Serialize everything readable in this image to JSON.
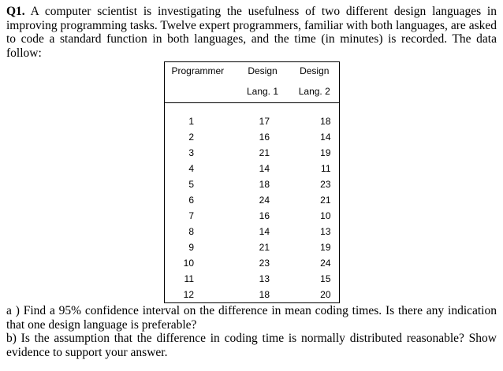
{
  "question": {
    "label": "Q1.",
    "intro": " A computer scientist is investigating the usefulness of two different design languages in improving programming tasks. Twelve expert programmers, familiar with both languages, are asked to code a standard function in both languages, and the time (in minutes) is recorded. The data follow:",
    "part_a": "a ) Find a 95% confidence interval on the difference in mean coding times. Is there any indication that one design language is preferable?",
    "part_b": "b) Is the assumption that the difference in coding time is normally distributed reasonable? Show evidence to support your answer."
  },
  "table": {
    "header": {
      "col1": "Programmer",
      "design1": "Design",
      "design2": "Design",
      "lang1": "Lang. 1",
      "lang2": "Lang. 2"
    },
    "rows": [
      {
        "programmer": "1",
        "lang1": "17",
        "lang2": "18"
      },
      {
        "programmer": "2",
        "lang1": "16",
        "lang2": "14"
      },
      {
        "programmer": "3",
        "lang1": "21",
        "lang2": "19"
      },
      {
        "programmer": "4",
        "lang1": "14",
        "lang2": "11"
      },
      {
        "programmer": "5",
        "lang1": "18",
        "lang2": "23"
      },
      {
        "programmer": "6",
        "lang1": "24",
        "lang2": "21"
      },
      {
        "programmer": "7",
        "lang1": "16",
        "lang2": "10"
      },
      {
        "programmer": "8",
        "lang1": "14",
        "lang2": "13"
      },
      {
        "programmer": "9",
        "lang1": "21",
        "lang2": "19"
      },
      {
        "programmer": "10",
        "lang1": "23",
        "lang2": "24"
      },
      {
        "programmer": "11",
        "lang1": "13",
        "lang2": "15"
      },
      {
        "programmer": "12",
        "lang1": "18",
        "lang2": "20"
      }
    ]
  }
}
